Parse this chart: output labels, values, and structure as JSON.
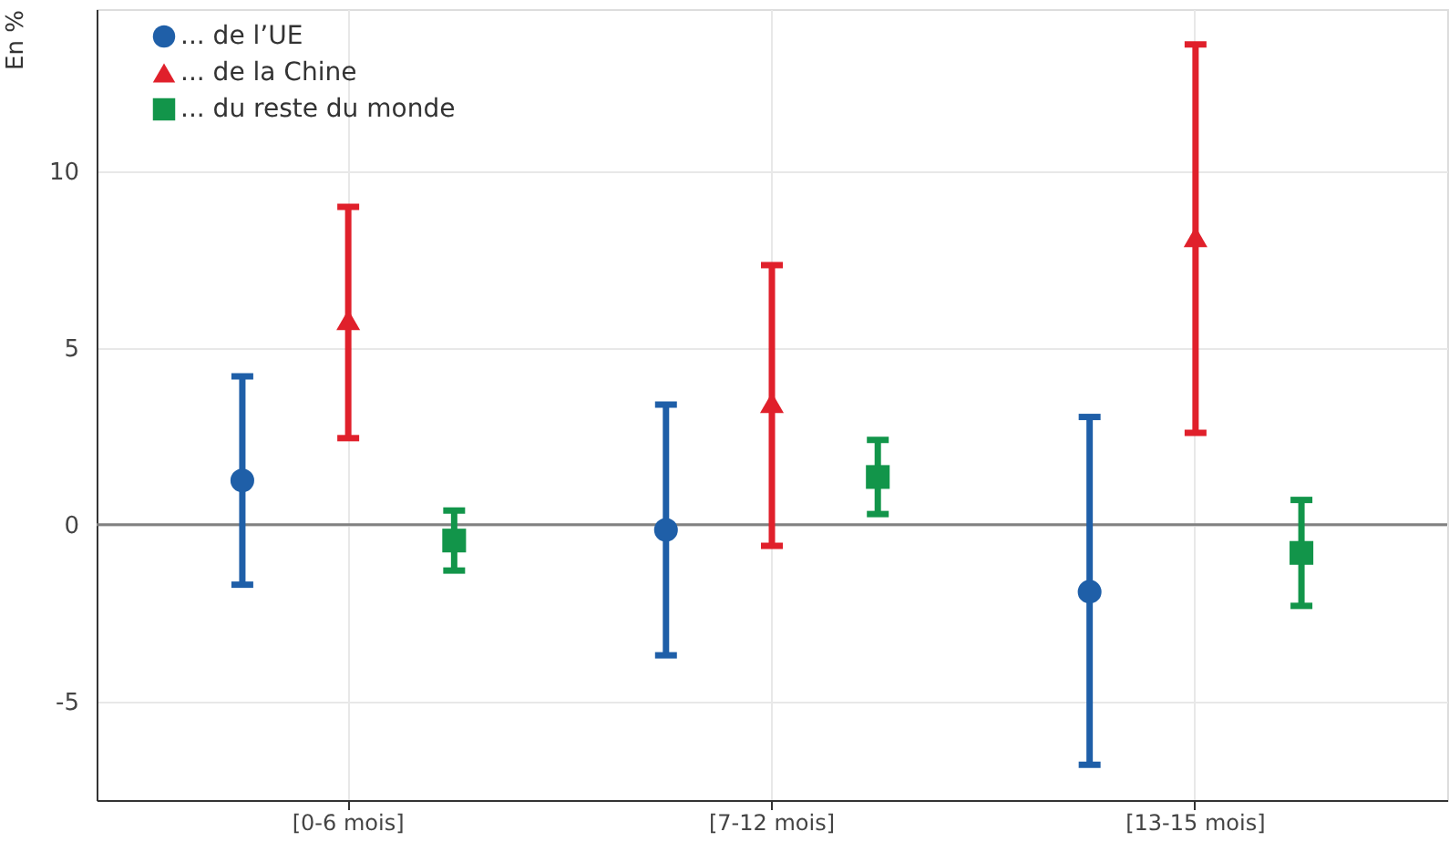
{
  "chart_data": {
    "type": "scatter",
    "ylabel": "En %",
    "categories": [
      "[0-6 mois]",
      "[7-12 mois]",
      "[13-15 mois]"
    ],
    "series": [
      {
        "name": "... de l’UE",
        "color": "#1f5fa8",
        "marker": "circle",
        "values": [
          1.25,
          -0.15,
          -1.9
        ],
        "errors": [
          [
            -1.7,
            4.2
          ],
          [
            -3.7,
            3.4
          ],
          [
            -6.8,
            3.05
          ]
        ]
      },
      {
        "name": "... de la Chine",
        "color": "#e0202b",
        "marker": "triangle",
        "values": [
          5.8,
          3.45,
          8.15
        ],
        "errors": [
          [
            2.45,
            9.0
          ],
          [
            -0.6,
            7.35
          ],
          [
            2.6,
            13.6
          ]
        ]
      },
      {
        "name": "... du reste du monde",
        "color": "#12954a",
        "marker": "square",
        "values": [
          -0.45,
          1.35,
          -0.8
        ],
        "errors": [
          [
            -1.3,
            0.4
          ],
          [
            0.3,
            2.4
          ],
          [
            -2.3,
            0.7
          ]
        ]
      }
    ],
    "ylim": [
      -7.8,
      14.6
    ],
    "yticks": [
      -5,
      0,
      5,
      10
    ],
    "ref_lines": [
      {
        "axis": "y",
        "value": 0,
        "color": "#808080"
      }
    ],
    "grid": true,
    "legend": "top left"
  }
}
